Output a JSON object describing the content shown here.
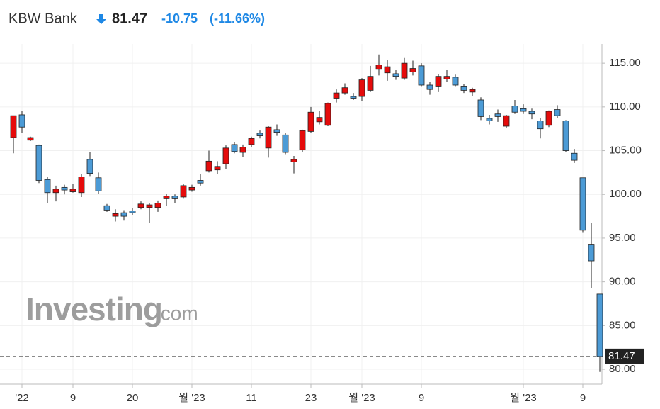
{
  "header": {
    "name": "KBW Bank",
    "price": 81.47,
    "change": -10.75,
    "change_pct": "(-11.66%)"
  },
  "watermark": {
    "brand": "Investing",
    "suffix": ".com"
  },
  "chart_data": {
    "type": "candlestick",
    "categories": [
      null,
      "'22",
      null,
      null,
      null,
      null,
      null,
      "9",
      null,
      null,
      null,
      null,
      null,
      null,
      "20",
      null,
      null,
      null,
      null,
      null,
      null,
      "월 '23",
      null,
      null,
      null,
      null,
      null,
      null,
      "11",
      null,
      null,
      null,
      null,
      null,
      null,
      "23",
      null,
      null,
      null,
      null,
      null,
      "월 '23",
      null,
      null,
      null,
      null,
      null,
      null,
      "9",
      null,
      null,
      null,
      null,
      null,
      null,
      null,
      null,
      null,
      null,
      null,
      "월 '23",
      null,
      null,
      null,
      null,
      null,
      null,
      "9",
      null,
      null
    ],
    "open": [
      106.5,
      109.1,
      106.2,
      105.6,
      101.7,
      100.2,
      100.8,
      100.3,
      100.2,
      104,
      101.9,
      98.7,
      97.5,
      97.9,
      98.1,
      98.5,
      98.5,
      98.5,
      99.5,
      99.8,
      99.7,
      100.5,
      101.6,
      102.7,
      102.8,
      103.5,
      105.7,
      104.8,
      105.7,
      107,
      105.3,
      107.4,
      106.8,
      103.7,
      105.1,
      107.2,
      108.3,
      107.9,
      111,
      111.6,
      111.2,
      111.2,
      111.9,
      114.3,
      113.9,
      113.8,
      113.3,
      114,
      114.7,
      112.5,
      112.3,
      113.2,
      113.4,
      112.3,
      111.7,
      110.8,
      108.7,
      109.2,
      107.8,
      110.1,
      109.8,
      109.5,
      108.4,
      107.9,
      109.7,
      108.4,
      104.7,
      101.9,
      94.3,
      88.6
    ],
    "high": [
      109,
      109.5,
      106.6,
      105.7,
      102,
      101,
      101.1,
      101.2,
      102.3,
      104.8,
      102.5,
      98.9,
      98.3,
      98.2,
      98.4,
      99.2,
      99,
      99.3,
      100.1,
      100,
      101.2,
      101.1,
      102.3,
      105,
      103.8,
      105.6,
      106,
      105.7,
      106.6,
      107.3,
      107.8,
      108,
      107,
      104.4,
      107.4,
      110,
      109.5,
      110.5,
      112,
      112.7,
      111.6,
      113.3,
      114.7,
      116,
      115.4,
      114.2,
      115.6,
      115.3,
      115,
      112.9,
      113.8,
      114.2,
      113.7,
      112.6,
      112.2,
      111.1,
      109.1,
      109.7,
      109.1,
      110.8,
      110.3,
      109.8,
      108.7,
      109.6,
      110.2,
      108.5,
      105.2,
      101.9,
      96.7,
      88.6
    ],
    "low": [
      104.7,
      107,
      106.1,
      101.3,
      99,
      99.2,
      100,
      100.2,
      99.7,
      102.1,
      100.1,
      98,
      96.9,
      97,
      97.6,
      98.3,
      96.7,
      98,
      98.7,
      99,
      99.5,
      100.3,
      101,
      102.5,
      102.3,
      102.9,
      104.7,
      104.3,
      105.4,
      106.4,
      104.2,
      106.7,
      104.6,
      102.4,
      104.8,
      107,
      108,
      107.8,
      110.5,
      111.4,
      110.8,
      110.7,
      111.7,
      113.6,
      113,
      113.1,
      113.1,
      113.6,
      112.3,
      111.4,
      111.7,
      112.9,
      112.3,
      111.6,
      111.2,
      108.5,
      108,
      108.3,
      107.6,
      109.2,
      109.2,
      108.6,
      106.4,
      107.7,
      108.7,
      104.8,
      103.6,
      95.6,
      89.3,
      79.7
    ],
    "close": [
      109,
      107.7,
      106.5,
      101.6,
      100.2,
      100.6,
      100.5,
      100.6,
      102,
      102.4,
      100.4,
      98.2,
      97.8,
      97.5,
      97.9,
      98.9,
      98.8,
      99,
      99.8,
      99.5,
      101,
      100.8,
      101.3,
      103.8,
      103.2,
      105.3,
      104.9,
      105.4,
      106.4,
      106.7,
      107.7,
      107.1,
      104.8,
      104,
      107.3,
      109.4,
      108.8,
      110.4,
      111.6,
      112.2,
      111,
      113.1,
      113.5,
      114.8,
      114.6,
      113.5,
      115,
      114.4,
      112.5,
      112,
      113.5,
      113.5,
      112.5,
      111.9,
      112,
      108.9,
      108.4,
      108.9,
      109,
      109.4,
      109.5,
      109.2,
      107.5,
      109.5,
      109,
      105,
      103.9,
      95.9,
      92.4,
      81.47
    ],
    "up_color": "#e50b0b",
    "down_color": "#4c9bd6",
    "ylim": [
      78.3,
      117.2
    ],
    "yticks": [
      {
        "value": 80,
        "label": "80.00"
      },
      {
        "value": 85,
        "label": "85.00"
      },
      {
        "value": 90,
        "label": "90.00"
      },
      {
        "value": 95,
        "label": "95.00"
      },
      {
        "value": 100,
        "label": "100.00"
      },
      {
        "value": 105,
        "label": "105.00"
      },
      {
        "value": 110,
        "label": "110.00"
      },
      {
        "value": 115,
        "label": "115.00"
      }
    ],
    "grid": true
  }
}
